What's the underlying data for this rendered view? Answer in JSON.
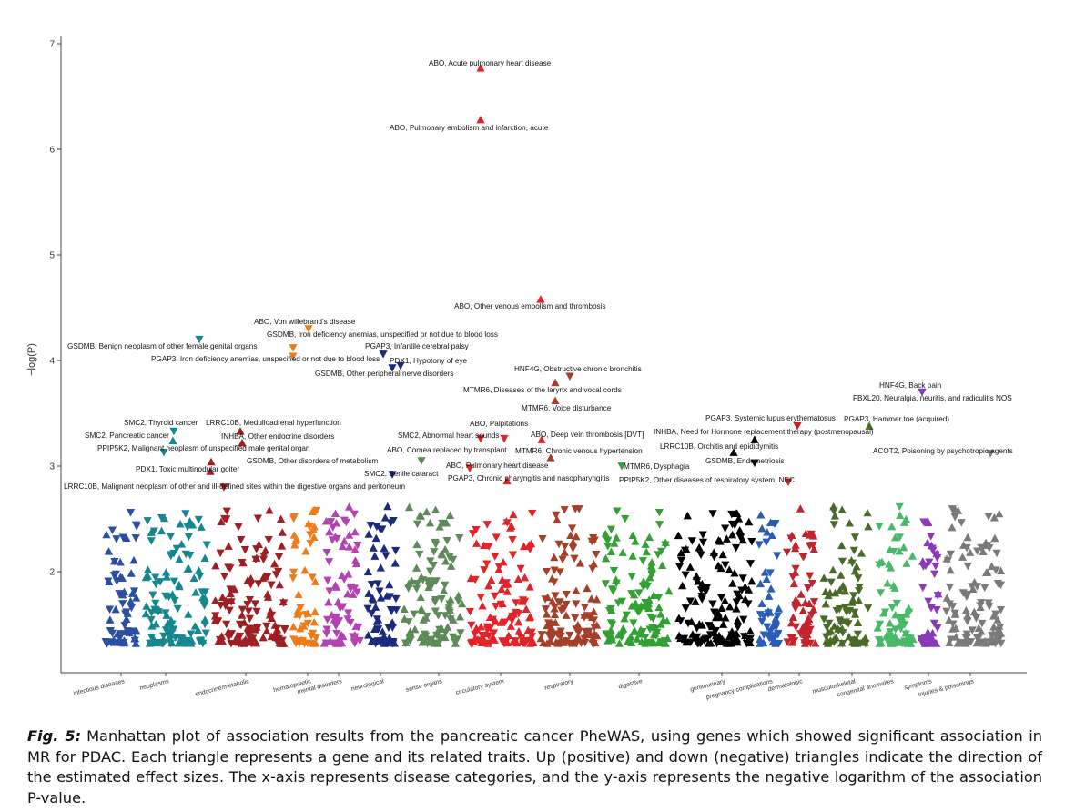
{
  "chart_data": {
    "type": "scatter",
    "title": "",
    "xlabel": "",
    "ylabel": "−log(P)",
    "ylim": [
      1.2,
      7.05
    ],
    "yticks": [
      2,
      3,
      4,
      5,
      6,
      7
    ],
    "grid": false,
    "legend": "none",
    "categories": [
      {
        "name": "infectious diseases",
        "color": "#2b4fa3",
        "cx": 133,
        "left": 112,
        "right": 156
      },
      {
        "name": "neoplasms",
        "color": "#14878f",
        "cx": 182,
        "left": 156,
        "right": 232
      },
      {
        "name": "endocrine/metabolic",
        "color": "#9e1f23",
        "cx": 270,
        "left": 232,
        "right": 318
      },
      {
        "name": "hematopoietic",
        "color": "#ef7c1c",
        "cx": 338,
        "left": 318,
        "right": 352
      },
      {
        "name": "mental disorders",
        "color": "#b443b2",
        "cx": 372,
        "left": 352,
        "right": 400
      },
      {
        "name": "neurological",
        "color": "#1c2a7c",
        "cx": 418,
        "left": 400,
        "right": 440
      },
      {
        "name": "sense organs",
        "color": "#5e8a5a",
        "cx": 482,
        "left": 440,
        "right": 512
      },
      {
        "name": "circulatory system",
        "color": "#e0242a",
        "cx": 550,
        "left": 512,
        "right": 590
      },
      {
        "name": "respiratory",
        "color": "#a4402a",
        "cx": 626,
        "left": 590,
        "right": 660
      },
      {
        "name": "digestive",
        "color": "#33a033",
        "cx": 702,
        "left": 660,
        "right": 740
      },
      {
        "name": "genitourinary",
        "color": "#000000",
        "cx": 793,
        "left": 740,
        "right": 830
      },
      {
        "name": "pregnancy complications",
        "color": "#2a5db5",
        "cx": 845,
        "left": 830,
        "right": 860
      },
      {
        "name": "dermatologic",
        "color": "#c0242c",
        "cx": 878,
        "left": 860,
        "right": 900
      },
      {
        "name": "musculoskeletal",
        "color": "#4a6a2a",
        "cx": 936,
        "left": 900,
        "right": 958
      },
      {
        "name": "congenital anomalies",
        "color": "#4ab86a",
        "cx": 978,
        "left": 958,
        "right": 1008
      },
      {
        "name": "symptoms",
        "color": "#8a3ab8",
        "cx": 1020,
        "left": 1008,
        "right": 1035
      },
      {
        "name": "injuries & poisonings",
        "color": "#7a7a7a",
        "cx": 1066,
        "left": 1035,
        "right": 1105
      }
    ],
    "labeled_points": [
      {
        "label": "ABO, Acute pulmonary heart disease",
        "category": "circulatory system",
        "y": 6.77,
        "direction": "up",
        "px": 528,
        "ax": 471,
        "ay": 72,
        "anchor": "start"
      },
      {
        "label": "ABO, Pulmonary embolism and infarction, acute",
        "category": "circulatory system",
        "y": 6.28,
        "direction": "up",
        "px": 528,
        "ax": 428,
        "ay": 143,
        "anchor": "start"
      },
      {
        "label": "ABO, Other venous embolism and thrombosis",
        "category": "circulatory system",
        "y": 4.58,
        "direction": "up",
        "px": 594,
        "ax": 499,
        "ay": 339,
        "anchor": "start"
      },
      {
        "label": "ABO, Von willebrand's disease",
        "category": "hematopoietic",
        "y": 4.3,
        "direction": "down",
        "px": 339,
        "ax": 279,
        "ay": 356,
        "anchor": "start"
      },
      {
        "label": "GSDMB, Iron deficiency anemias, unspecified or not due to blood loss",
        "category": "hematopoietic",
        "y": 4.12,
        "direction": "down",
        "px": 322,
        "ax": 293,
        "ay": 370,
        "anchor": "start"
      },
      {
        "label": "GSDMB, Benign neoplasm of other female genital organs",
        "category": "neoplasms",
        "y": 4.2,
        "direction": "down",
        "px": 219,
        "ax": 74,
        "ay": 383,
        "anchor": "start"
      },
      {
        "label": "PGAP3, Infantile cerebral palsy",
        "category": "neurological",
        "y": 4.06,
        "direction": "down",
        "px": 421,
        "ax": 401,
        "ay": 383,
        "anchor": "start"
      },
      {
        "label": "PGAP3, Iron deficiency anemias, unspecified or not due to blood loss",
        "category": "hematopoietic",
        "y": 4.04,
        "direction": "down",
        "px": 322,
        "ax": 166,
        "ay": 397,
        "anchor": "start"
      },
      {
        "label": "PDX1, Hypotony of eye",
        "category": "neurological",
        "y": 3.95,
        "direction": "down",
        "px": 440,
        "ax": 428,
        "ay": 399,
        "anchor": "start"
      },
      {
        "label": "GSDMB, Other peripheral nerve disorders",
        "category": "neurological",
        "y": 3.93,
        "direction": "down",
        "px": 431,
        "ax": 346,
        "ay": 413,
        "anchor": "start"
      },
      {
        "label": "HNF4G, Obstructive chronic bronchitis",
        "category": "respiratory",
        "y": 3.85,
        "direction": "down",
        "px": 626,
        "ax": 565,
        "ay": 408,
        "anchor": "start"
      },
      {
        "label": "MTMR6, Diseases of the larynx and vocal cords",
        "category": "respiratory",
        "y": 3.79,
        "direction": "up",
        "px": 610,
        "ax": 509,
        "ay": 431,
        "anchor": "start"
      },
      {
        "label": "MTMR6, Voice disturbance",
        "category": "respiratory",
        "y": 3.62,
        "direction": "up",
        "px": 610,
        "ax": 573,
        "ay": 451,
        "anchor": "start"
      },
      {
        "label": "HNF4G, Back pain",
        "category": "symptoms",
        "y": 3.7,
        "direction": "down",
        "px": 1013,
        "ax": 966,
        "ay": 426,
        "anchor": "start"
      },
      {
        "label": "FBXL20, Neuralgia, neuritis, and radiculitis NOS",
        "category": "symptoms",
        "y": 3.7,
        "direction": "down",
        "px": 1013,
        "ax": 937,
        "ay": 440,
        "anchor": "start"
      },
      {
        "label": "SMC2, Thyroid cancer",
        "category": "neoplasms",
        "y": 3.33,
        "direction": "down",
        "px": 191,
        "ax": 136,
        "ay": 467,
        "anchor": "start"
      },
      {
        "label": "LRRC10B, Medulloadrenal hyperfunction",
        "category": "endocrine/metabolic",
        "y": 3.33,
        "direction": "up",
        "px": 264,
        "ax": 226,
        "ay": 467,
        "anchor": "start"
      },
      {
        "label": "PGAP3, Systemic lupus erythematosus",
        "category": "dermatologic",
        "y": 3.38,
        "direction": "down",
        "px": 876,
        "ax": 775,
        "ay": 462,
        "anchor": "start"
      },
      {
        "label": "PGAP3, Hammer toe (acquired)",
        "category": "musculoskeletal",
        "y": 3.38,
        "direction": "up",
        "px": 955,
        "ax": 927,
        "ay": 463,
        "anchor": "start"
      },
      {
        "label": "ABO, Palpitations",
        "category": "circulatory system",
        "y": 3.26,
        "direction": "down",
        "px": 554,
        "ax": 516,
        "ay": 468,
        "anchor": "start"
      },
      {
        "label": "SMC2, Pancreatic cancer",
        "category": "neoplasms",
        "y": 3.24,
        "direction": "up",
        "px": 190,
        "ax": 93,
        "ay": 481,
        "anchor": "start"
      },
      {
        "label": "INHBA, Other endocrine disorders",
        "category": "endocrine/metabolic",
        "y": 3.22,
        "direction": "up",
        "px": 266,
        "ax": 243,
        "ay": 482,
        "anchor": "start"
      },
      {
        "label": "SMC2, Abnormal heart sounds",
        "category": "circulatory system",
        "y": 3.26,
        "direction": "down",
        "px": 528,
        "ax": 437,
        "ay": 481,
        "anchor": "start"
      },
      {
        "label": "ABO, Deep vein thrombosis [DVT]",
        "category": "circulatory system",
        "y": 3.25,
        "direction": "up",
        "px": 595,
        "ax": 583,
        "ay": 480,
        "anchor": "start"
      },
      {
        "label": "INHBA, Need for Hormone replacement therapy (postmenopausal)",
        "category": "genitourinary",
        "y": 3.25,
        "direction": "up",
        "px": 829,
        "ax": 718,
        "ay": 477,
        "anchor": "start"
      },
      {
        "label": "PPIP5K2, Malignant neoplasm of unspecified male genital organ",
        "category": "neoplasms",
        "y": 3.13,
        "direction": "down",
        "px": 180,
        "ax": 107,
        "ay": 495,
        "anchor": "start"
      },
      {
        "label": "ABO, Cornea replaced by transplant",
        "category": "sense organs",
        "y": 3.05,
        "direction": "down",
        "px": 463,
        "ax": 425,
        "ay": 497,
        "anchor": "start"
      },
      {
        "label": "MTMR6, Chronic venous hypertension",
        "category": "respiratory",
        "y": 3.08,
        "direction": "up",
        "px": 605,
        "ax": 566,
        "ay": 498,
        "anchor": "start"
      },
      {
        "label": "LRRC10B, Orchitis and epididymitis",
        "category": "genitourinary",
        "y": 3.13,
        "direction": "up",
        "px": 806,
        "ax": 725,
        "ay": 493,
        "anchor": "start"
      },
      {
        "label": "ACOT2, Poisoning by psychotropic agents",
        "category": "injuries & poisonings",
        "y": 3.12,
        "direction": "down",
        "px": 1088,
        "ax": 959,
        "ay": 498,
        "anchor": "start"
      },
      {
        "label": "GSDMB, Other disorders of metabolism",
        "category": "endocrine/metabolic",
        "y": 3.04,
        "direction": "up",
        "px": 232,
        "ax": 271,
        "ay": 509,
        "anchor": "start"
      },
      {
        "label": "ABO, Pulmonary heart disease",
        "category": "circulatory system",
        "y": 2.98,
        "direction": "down",
        "px": 516,
        "ax": 490,
        "ay": 514,
        "anchor": "start"
      },
      {
        "label": "MTMR6, Dysphagia",
        "category": "digestive",
        "y": 3.0,
        "direction": "down",
        "px": 683,
        "ax": 685,
        "ay": 515,
        "anchor": "start"
      },
      {
        "label": "GSDMB, Endometriosis",
        "category": "genitourinary",
        "y": 3.03,
        "direction": "down",
        "px": 829,
        "ax": 775,
        "ay": 509,
        "anchor": "start"
      },
      {
        "label": "PDX1, Toxic multinodular goiter",
        "category": "endocrine/metabolic",
        "y": 2.95,
        "direction": "up",
        "px": 231,
        "ax": 149,
        "ay": 518,
        "anchor": "start"
      },
      {
        "label": "SMC2, Senile cataract",
        "category": "neurological",
        "y": 2.92,
        "direction": "down",
        "px": 431,
        "ax": 400,
        "ay": 523,
        "anchor": "start"
      },
      {
        "label": "PGAP3, Chronic pharyngitis and nasopharyngitis",
        "category": "circulatory system",
        "y": 2.86,
        "direction": "up",
        "px": 557,
        "ax": 492,
        "ay": 528,
        "anchor": "start"
      },
      {
        "label": "PPIP5K2, Other diseases of respiratory system, NEC",
        "category": "dermatologic",
        "y": 2.85,
        "direction": "down",
        "px": 866,
        "ax": 680,
        "ay": 530,
        "anchor": "start"
      },
      {
        "label": "LRRC10B, Malignant neoplasm of other and ill-defined sites within the digestive organs and peritoneum",
        "category": "endocrine/metabolic",
        "y": 2.8,
        "direction": "down",
        "px": 246,
        "ax": 70,
        "ay": 537,
        "anchor": "start"
      }
    ]
  },
  "caption": {
    "fig_label": "Fig. 5:",
    "text": "Manhattan plot of association results from the pancreatic cancer PheWAS, using genes which showed significant association in MR for PDAC. Each triangle represents a gene and its related traits. Up (positive) and down (negative) triangles indicate the direction of the estimated effect sizes. The x-axis represents disease categories, and the y-axis represents the negative logarithm of the association P-value."
  }
}
